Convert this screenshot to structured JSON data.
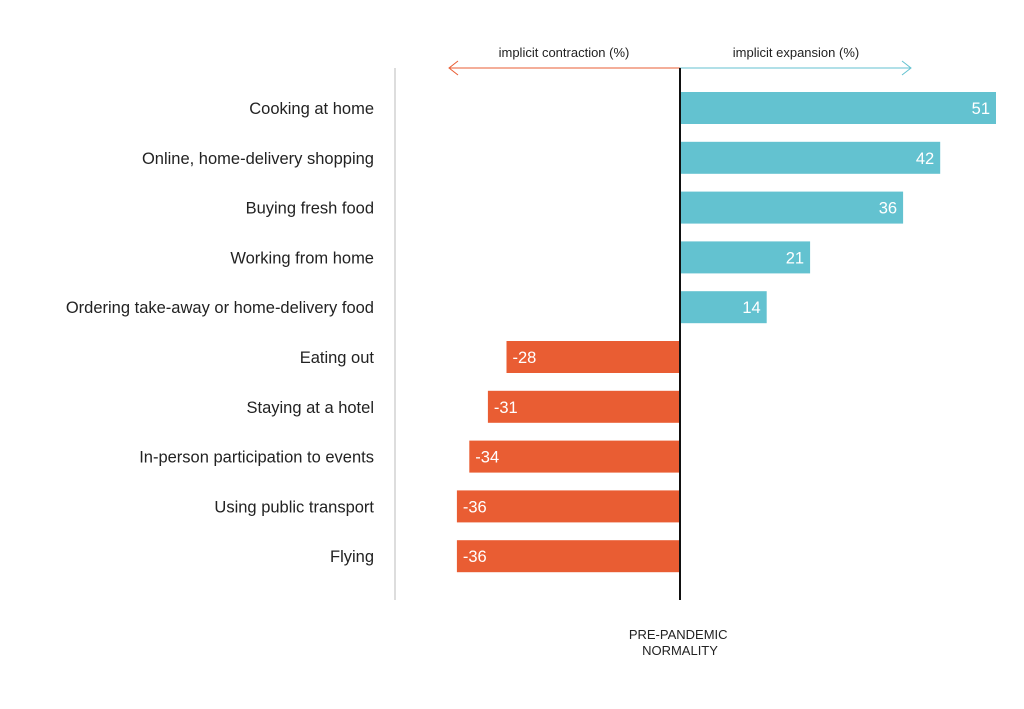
{
  "chart_data": {
    "type": "bar",
    "orientation": "horizontal",
    "categories": [
      "Cooking at home",
      "Online, home-delivery shopping",
      "Buying fresh food",
      "Working from home",
      "Ordering take-away or home-delivery food",
      "Eating out",
      "Staying at a hotel",
      "In-person participation to events",
      "Using public transport",
      "Flying"
    ],
    "values": [
      51,
      42,
      36,
      21,
      14,
      -28,
      -31,
      -34,
      -36,
      -36
    ],
    "negative_header": "implicit contraction (%)",
    "positive_header": "implicit expansion (%)",
    "baseline_label_lines": [
      "PRE-PANDEMIC",
      "NORMALITY"
    ],
    "xlim": [
      -36,
      51
    ],
    "colors": {
      "positive": "#63C2D0",
      "negative": "#E95D33",
      "baseline": "#111111",
      "axis": "#bbbbbb",
      "value_text": "#ffffff"
    }
  }
}
